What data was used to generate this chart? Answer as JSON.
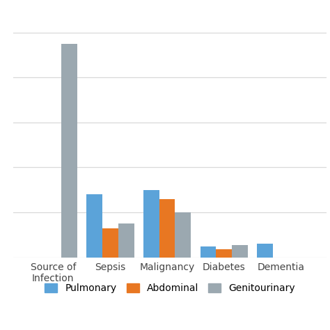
{
  "categories": [
    "Source of\nInfection",
    "Sepsis",
    "Malignancy",
    "Diabetes",
    "Dementia"
  ],
  "series": {
    "Pulmonary": [
      0,
      28,
      30,
      5,
      6
    ],
    "Abdominal": [
      0,
      13,
      26,
      3.5,
      0
    ],
    "Genitourinary": [
      95,
      15,
      20,
      5.5,
      0
    ]
  },
  "colors": {
    "Pulmonary": "#5BA3D9",
    "Abdominal": "#E87722",
    "Genitourinary": "#9BA8B0"
  },
  "ylim": [
    0,
    110
  ],
  "yticks": [
    0,
    20,
    40,
    60,
    80,
    100
  ],
  "background_color": "#ffffff",
  "grid_color": "#d9d9d9",
  "bar_width": 0.28,
  "figsize": [
    7.5,
    4.74
  ],
  "xlim_left": -0.7,
  "xlim_right": 4.8
}
